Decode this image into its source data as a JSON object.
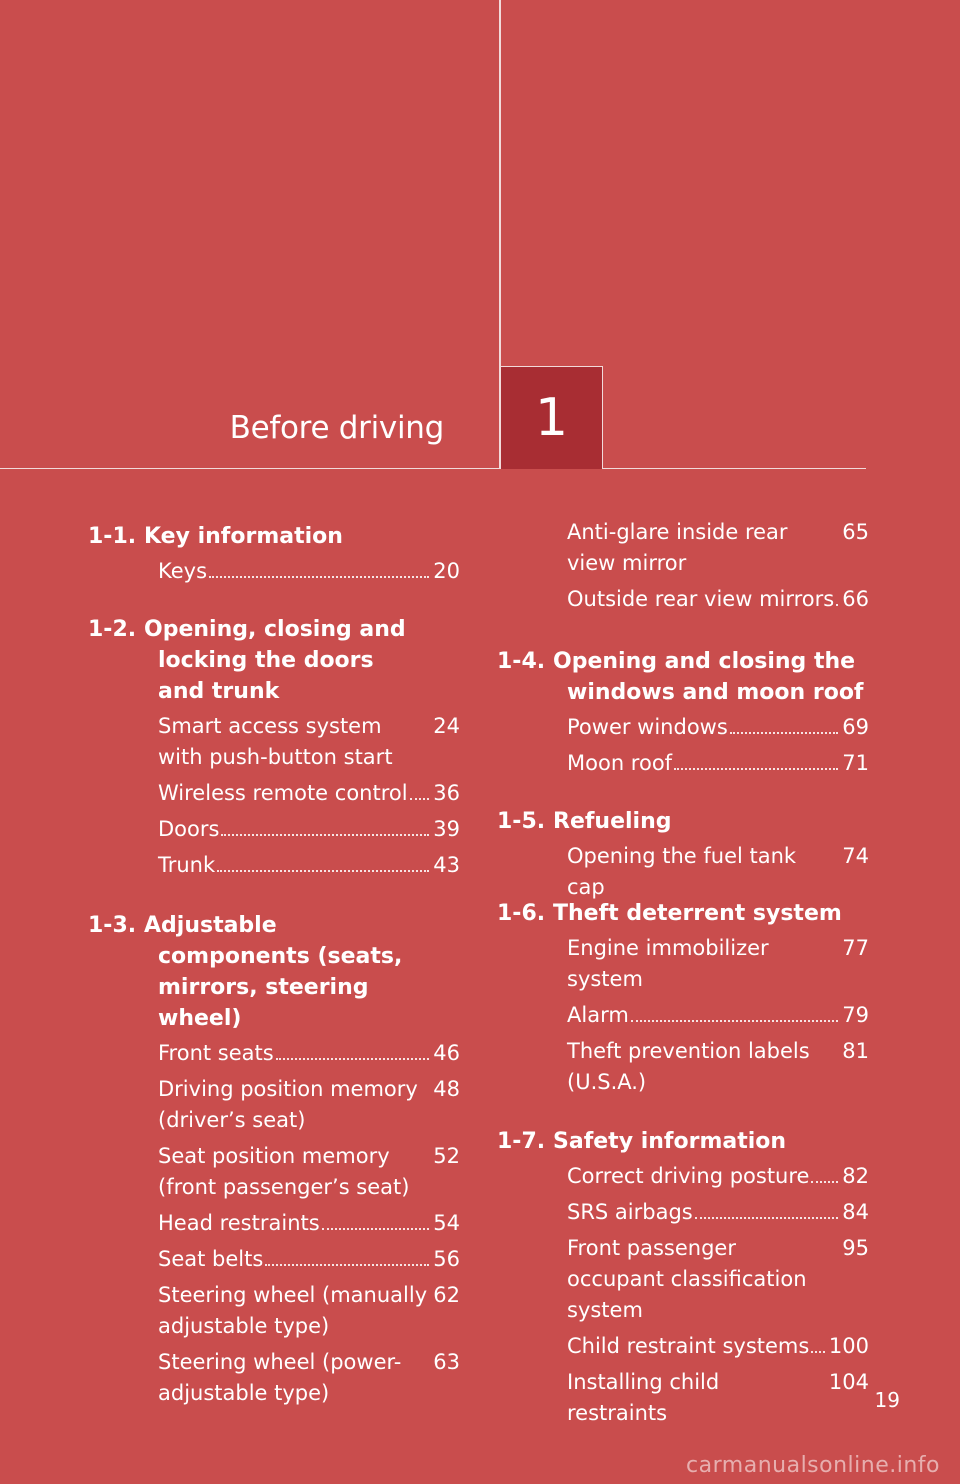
{
  "chapter": {
    "title": "Before driving",
    "number": "1"
  },
  "sections_left": [
    {
      "num": "1-1.",
      "title": "Key information",
      "entries": [
        {
          "text": "Keys",
          "page": "20"
        }
      ]
    },
    {
      "num": "1-2.",
      "title": "Opening, closing and locking the doors and trunk",
      "entries": [
        {
          "text": "Smart access system with push-button start",
          "page": "24"
        },
        {
          "text": "Wireless remote control",
          "page": "36"
        },
        {
          "text": "Doors",
          "page": "39"
        },
        {
          "text": "Trunk",
          "page": "43"
        }
      ]
    },
    {
      "num": "1-3.",
      "title": "Adjustable components (seats, mirrors, steering wheel)",
      "entries": [
        {
          "text": "Front seats",
          "page": "46"
        },
        {
          "text": "Driving position memory (driver’s seat)",
          "page": "48"
        },
        {
          "text": "Seat position memory (front passenger’s seat)",
          "page": "52"
        },
        {
          "text": "Head restraints",
          "page": "54"
        },
        {
          "text": "Seat belts",
          "page": "56"
        },
        {
          "text": "Steering wheel (manually adjustable type)",
          "page": "62"
        },
        {
          "text": "Steering wheel (power-adjustable type)",
          "page": "63"
        }
      ]
    }
  ],
  "sections_right": [
    {
      "num": "",
      "title": "",
      "entries": [
        {
          "text": "Anti-glare inside rear view mirror",
          "page": "65"
        },
        {
          "text": "Outside rear view mirrors",
          "page": "66"
        }
      ]
    },
    {
      "num": "1-4.",
      "title": "Opening and closing the windows and moon roof",
      "entries": [
        {
          "text": "Power windows",
          "page": "69"
        },
        {
          "text": "Moon roof",
          "page": "71"
        }
      ]
    },
    {
      "num": "1-5.",
      "title": "Refueling",
      "entries": [
        {
          "text": "Opening the fuel tank cap",
          "page": "74"
        }
      ]
    },
    {
      "num": "1-6.",
      "title": "Theft deterrent system",
      "entries": [
        {
          "text": "Engine immobilizer system",
          "page": "77"
        },
        {
          "text": "Alarm",
          "page": "79"
        },
        {
          "text": "Theft prevention labels (U.S.A.)",
          "page": "81"
        }
      ]
    },
    {
      "num": "1-7.",
      "title": "Safety information",
      "entries": [
        {
          "text": "Correct driving posture",
          "page": "82"
        },
        {
          "text": "SRS airbags",
          "page": "84"
        },
        {
          "text": "Front passenger occupant classification system",
          "page": "95"
        },
        {
          "text": "Child restraint systems",
          "page": "100"
        },
        {
          "text": "Installing child restraints",
          "page": "104"
        }
      ]
    }
  ],
  "page_number": "19",
  "watermark": "carmanualsonline.info"
}
